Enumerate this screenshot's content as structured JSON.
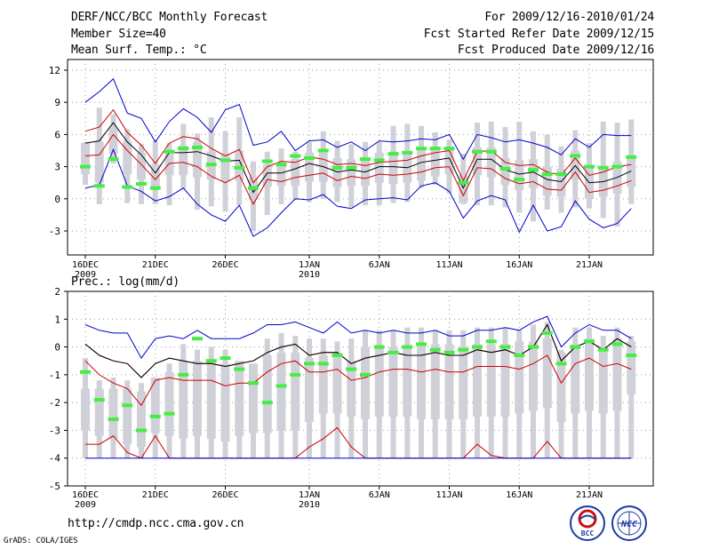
{
  "header": {
    "title": "DERF/NCC/BCC Monthly Forecast",
    "member_size": "Member Size=40",
    "variable_top": "Mean Surf. Temp.: °C",
    "for_period": "For 2009/12/16-2010/01/24",
    "fcst_started": "Fcst Started Refer Date 2009/12/15",
    "fcst_produced": "Fcst Produced Date 2009/12/16"
  },
  "footer": {
    "url": "http://cmdp.ncc.cma.gov.cn",
    "credit": "GrADS: COLA/IGES"
  },
  "logos": {
    "bcc": "BCC",
    "ncc": "NCC"
  },
  "colors": {
    "max_min_line": "#0000cc",
    "spread_line": "#cc0000",
    "mean_line": "#000000",
    "obs_marker": "#44ee44",
    "box": "#d0d0d8",
    "grid": "#999999"
  },
  "chart_data": [
    {
      "type": "line",
      "name": "temperature",
      "title": "Mean Surf. Temp.: °C",
      "x_ticks": [
        {
          "day": 0,
          "label": "16DEC",
          "sub": "2009"
        },
        {
          "day": 5,
          "label": "21DEC",
          "sub": ""
        },
        {
          "day": 10,
          "label": "26DEC",
          "sub": ""
        },
        {
          "day": 16,
          "label": "1JAN",
          "sub": "2010"
        },
        {
          "day": 21,
          "label": "6JAN",
          "sub": ""
        },
        {
          "day": 26,
          "label": "11JAN",
          "sub": ""
        },
        {
          "day": 31,
          "label": "16JAN",
          "sub": ""
        },
        {
          "day": 36,
          "label": "21JAN",
          "sub": ""
        }
      ],
      "ylim": [
        -5,
        13
      ],
      "yticks": [
        -3,
        0,
        3,
        6,
        9,
        12
      ],
      "days": 40,
      "series": [
        {
          "name": "max",
          "color_key": "max_min_line",
          "values": [
            9.0,
            10.0,
            11.2,
            8.0,
            7.5,
            5.3,
            7.2,
            8.4,
            7.6,
            6.2,
            8.3,
            8.8,
            5.0,
            5.3,
            6.3,
            4.5,
            5.4,
            5.5,
            4.8,
            5.3,
            4.5,
            5.4,
            5.3,
            5.4,
            5.6,
            5.5,
            6.0,
            3.7,
            6.0,
            5.7,
            5.3,
            5.5,
            5.2,
            4.8,
            4.1,
            5.6,
            4.8,
            6.0,
            5.9,
            5.9
          ]
        },
        {
          "name": "upper",
          "color_key": "spread_line",
          "values": [
            6.3,
            6.7,
            8.3,
            6.2,
            5.0,
            3.3,
            5.2,
            5.8,
            5.6,
            4.7,
            4.0,
            4.6,
            1.5,
            3.0,
            3.5,
            3.4,
            3.9,
            3.7,
            3.2,
            3.3,
            3.1,
            3.4,
            3.5,
            3.6,
            4.0,
            4.3,
            4.5,
            1.7,
            4.4,
            4.5,
            3.4,
            3.1,
            3.2,
            2.5,
            2.2,
            3.8,
            2.2,
            2.5,
            3.0,
            3.2
          ]
        },
        {
          "name": "mean",
          "color_key": "mean_line",
          "values": [
            5.2,
            5.4,
            7.1,
            5.3,
            4.1,
            2.4,
            4.3,
            4.3,
            4.4,
            4.0,
            3.5,
            3.6,
            0.6,
            2.4,
            2.4,
            2.8,
            3.3,
            3.0,
            2.5,
            2.7,
            2.5,
            3.0,
            3.0,
            2.9,
            3.4,
            3.6,
            3.8,
            1.0,
            3.7,
            3.7,
            2.7,
            2.3,
            2.5,
            1.8,
            1.6,
            3.1,
            1.5,
            1.6,
            2.0,
            2.6
          ]
        },
        {
          "name": "lower",
          "color_key": "spread_line",
          "values": [
            4.0,
            4.1,
            6.0,
            4.5,
            3.2,
            1.8,
            3.3,
            3.4,
            3.0,
            2.1,
            1.5,
            2.2,
            -0.5,
            1.8,
            1.6,
            2.0,
            2.2,
            2.4,
            1.7,
            2.1,
            1.9,
            2.3,
            2.2,
            2.3,
            2.5,
            2.9,
            3.0,
            0.3,
            2.9,
            2.8,
            1.9,
            1.4,
            1.6,
            0.9,
            0.8,
            2.5,
            0.6,
            0.8,
            1.2,
            1.7
          ]
        },
        {
          "name": "min",
          "color_key": "max_min_line",
          "values": [
            1.0,
            1.3,
            4.6,
            1.2,
            0.7,
            -0.2,
            0.2,
            1.0,
            -0.5,
            -1.5,
            -2.1,
            -0.6,
            -3.5,
            -2.7,
            -1.3,
            0.0,
            -0.1,
            0.4,
            -0.7,
            -0.9,
            -0.1,
            0.0,
            0.1,
            -0.1,
            1.2,
            1.5,
            0.7,
            -1.8,
            -0.2,
            0.3,
            -0.1,
            -3.1,
            -0.6,
            -3.0,
            -2.6,
            -0.2,
            -1.9,
            -2.7,
            -2.3,
            -0.9
          ]
        }
      ],
      "box_low": [
        1.3,
        -0.5,
        3.3,
        -0.4,
        -0.5,
        -0.5,
        -0.6,
        0.9,
        -1.0,
        -0.7,
        -1.2,
        -0.6,
        -3.0,
        -1.5,
        -0.5,
        -0.1,
        -0.3,
        0.0,
        -0.3,
        -0.8,
        -0.6,
        -0.6,
        -0.4,
        -0.3,
        1.0,
        1.3,
        0.5,
        -0.5,
        -0.6,
        -0.6,
        -0.8,
        -1.3,
        -2.1,
        -1.0,
        -1.3,
        -0.8,
        -0.9,
        -1.8,
        -2.6,
        -0.5
      ],
      "box_q1": [
        2.3,
        1.5,
        4.2,
        2.3,
        1.8,
        0.9,
        2.2,
        2.2,
        2.0,
        1.8,
        1.6,
        1.7,
        -0.1,
        1.1,
        1.2,
        1.2,
        1.6,
        1.6,
        1.1,
        1.2,
        1.2,
        1.5,
        1.4,
        1.5,
        1.7,
        2.1,
        2.3,
        -0.4,
        2.2,
        2.0,
        1.3,
        0.8,
        1.0,
        0.3,
        0.2,
        1.8,
        0.0,
        0.2,
        0.5,
        1.1
      ],
      "box_q3": [
        5.2,
        5.3,
        6.6,
        5.4,
        4.3,
        3.2,
        4.3,
        5.0,
        5.3,
        4.4,
        4.2,
        4.5,
        2.0,
        3.2,
        3.2,
        3.7,
        4.3,
        4.3,
        3.8,
        3.7,
        3.7,
        4.3,
        4.4,
        4.3,
        4.6,
        4.7,
        4.7,
        2.2,
        4.8,
        4.8,
        3.8,
        3.6,
        3.7,
        3.0,
        2.8,
        4.5,
        3.0,
        3.1,
        3.5,
        3.8
      ],
      "box_high": [
        5.3,
        8.5,
        7.9,
        6.5,
        5.1,
        5.4,
        5.2,
        7.0,
        6.1,
        7.6,
        6.3,
        7.6,
        3.5,
        4.4,
        4.7,
        4.4,
        5.3,
        6.3,
        5.4,
        5.1,
        5.3,
        5.3,
        6.8,
        7.0,
        6.8,
        6.2,
        5.5,
        4.2,
        7.1,
        7.2,
        6.7,
        7.2,
        6.3,
        6.0,
        4.9,
        6.4,
        5.2,
        7.2,
        7.1,
        7.4
      ],
      "observed": [
        3.0,
        1.2,
        3.7,
        1.1,
        1.4,
        1.0,
        4.4,
        4.7,
        4.8,
        3.2,
        3.6,
        2.9,
        1.0,
        3.5,
        3.2,
        4.0,
        3.8,
        4.5,
        2.9,
        2.9,
        3.7,
        3.6,
        4.2,
        4.3,
        4.7,
        4.7,
        4.7,
        1.5,
        4.4,
        4.4,
        2.8,
        1.8,
        2.7,
        2.3,
        2.3,
        4.0,
        3.0,
        2.9,
        3.0,
        3.9
      ]
    },
    {
      "type": "line",
      "name": "precipitation",
      "title": "Prec.: log(mm/d)",
      "ylim": [
        -5,
        2
      ],
      "yticks": [
        -5,
        -4,
        -3,
        -2,
        -1,
        0,
        1,
        2
      ],
      "days": 40,
      "series": [
        {
          "name": "max",
          "color_key": "max_min_line",
          "values": [
            0.8,
            0.6,
            0.5,
            0.5,
            -0.4,
            0.3,
            0.4,
            0.3,
            0.6,
            0.3,
            0.3,
            0.3,
            0.5,
            0.8,
            0.8,
            0.9,
            0.7,
            0.5,
            0.9,
            0.5,
            0.6,
            0.5,
            0.6,
            0.5,
            0.5,
            0.6,
            0.4,
            0.4,
            0.6,
            0.6,
            0.7,
            0.6,
            0.9,
            1.1,
            0.0,
            0.5,
            0.8,
            0.6,
            0.6,
            0.3
          ]
        },
        {
          "name": "upper",
          "color_key": "spread_line",
          "values": [
            0.1,
            -0.3,
            -0.5,
            -0.6,
            -1.1,
            -0.6,
            -0.4,
            -0.5,
            -0.6,
            -0.6,
            -0.7,
            -0.6,
            -0.5,
            -0.2,
            0.0,
            0.1,
            -0.3,
            -0.2,
            -0.2,
            -0.6,
            -0.4,
            -0.3,
            -0.2,
            -0.3,
            -0.3,
            -0.2,
            -0.3,
            -0.3,
            -0.1,
            -0.2,
            -0.1,
            -0.3,
            0.0,
            0.8,
            -0.5,
            0.0,
            0.2,
            -0.1,
            0.3,
            0.0
          ]
        },
        {
          "name": "mean",
          "color_key": "mean_line",
          "values": [
            0.1,
            -0.3,
            -0.5,
            -0.6,
            -1.1,
            -0.6,
            -0.4,
            -0.5,
            -0.6,
            -0.6,
            -0.7,
            -0.6,
            -0.5,
            -0.2,
            0.0,
            0.1,
            -0.3,
            -0.2,
            -0.2,
            -0.6,
            -0.4,
            -0.3,
            -0.2,
            -0.3,
            -0.3,
            -0.2,
            -0.3,
            -0.3,
            -0.1,
            -0.2,
            -0.1,
            -0.3,
            0.0,
            0.8,
            -0.5,
            0.0,
            0.2,
            -0.1,
            0.3,
            0.0
          ]
        },
        {
          "name": "lower",
          "color_key": "spread_line",
          "values": [
            -0.5,
            -1.0,
            -1.3,
            -1.5,
            -2.1,
            -1.2,
            -1.1,
            -1.2,
            -1.2,
            -1.2,
            -1.4,
            -1.3,
            -1.3,
            -0.9,
            -0.6,
            -0.5,
            -0.9,
            -0.9,
            -0.8,
            -1.2,
            -1.1,
            -0.9,
            -0.8,
            -0.8,
            -0.9,
            -0.8,
            -0.9,
            -0.9,
            -0.7,
            -0.7,
            -0.7,
            -0.8,
            -0.6,
            -0.3,
            -1.3,
            -0.6,
            -0.4,
            -0.7,
            -0.6,
            -0.8
          ]
        },
        {
          "name": "low_red",
          "color_key": "spread_line",
          "values": [
            -3.5,
            -3.5,
            -3.2,
            -3.8,
            -4.0,
            -3.2,
            -4.0,
            -4.0,
            -4.0,
            -4.0,
            -4.0,
            -4.0,
            -4.0,
            -4.0,
            -4.0,
            -4.0,
            -3.6,
            -3.3,
            -2.9,
            -3.6,
            -4.0,
            -4.0,
            -4.0,
            -4.0,
            -4.0,
            -4.0,
            -4.0,
            -4.0,
            -3.5,
            -3.9,
            -4.0,
            -4.0,
            -4.0,
            -3.4,
            -4.0,
            -4.0,
            -4.0,
            -4.0,
            -4.0,
            -4.0
          ]
        },
        {
          "name": "min",
          "color_key": "max_min_line",
          "values": [
            -4.0,
            -4.0,
            -4.0,
            -4.0,
            -4.0,
            -4.0,
            -4.0,
            -4.0,
            -4.0,
            -4.0,
            -4.0,
            -4.0,
            -4.0,
            -4.0,
            -4.0,
            -4.0,
            -4.0,
            -4.0,
            -4.0,
            -4.0,
            -4.0,
            -4.0,
            -4.0,
            -4.0,
            -4.0,
            -4.0,
            -4.0,
            -4.0,
            -4.0,
            -4.0,
            -4.0,
            -4.0,
            -4.0,
            -4.0,
            -4.0,
            -4.0,
            -4.0,
            -4.0,
            -4.0,
            -4.0
          ]
        }
      ],
      "box_low": [
        -4.0,
        -4.0,
        -4.0,
        -4.0,
        -4.0,
        -4.0,
        -4.0,
        -4.0,
        -4.0,
        -4.0,
        -4.0,
        -4.0,
        -4.0,
        -4.0,
        -4.0,
        -4.0,
        -4.0,
        -4.0,
        -4.0,
        -4.0,
        -4.0,
        -4.0,
        -4.0,
        -4.0,
        -4.0,
        -4.0,
        -4.0,
        -4.0,
        -4.0,
        -4.0,
        -4.0,
        -4.0,
        -4.0,
        -4.0,
        -4.0,
        -4.0,
        -4.0,
        -4.0,
        -4.0,
        -4.0
      ],
      "box_q1": [
        -3.0,
        -3.2,
        -3.3,
        -3.5,
        -3.6,
        -3.1,
        -3.2,
        -3.3,
        -3.2,
        -3.3,
        -3.4,
        -3.2,
        -3.1,
        -3.1,
        -3.0,
        -3.0,
        -2.7,
        -2.4,
        -2.4,
        -2.5,
        -2.6,
        -2.5,
        -2.5,
        -2.5,
        -2.6,
        -2.6,
        -2.6,
        -2.6,
        -2.5,
        -2.5,
        -2.5,
        -2.4,
        -2.3,
        -2.2,
        -2.7,
        -2.4,
        -2.3,
        -2.4,
        -2.3,
        -1.7
      ],
      "box_q3": [
        -1.5,
        -1.5,
        -1.5,
        -1.5,
        -1.6,
        -1.1,
        -0.9,
        -0.5,
        -0.5,
        -0.5,
        -0.6,
        -0.5,
        -0.6,
        -0.3,
        -0.2,
        -0.2,
        -0.4,
        -0.3,
        -0.2,
        -0.5,
        0.0,
        0.0,
        0.0,
        0.0,
        0.1,
        0.1,
        0.1,
        0.0,
        0.1,
        0.1,
        0.1,
        0.2,
        0.2,
        0.3,
        -0.2,
        0.1,
        0.3,
        0.0,
        0.3,
        0.2
      ],
      "box_high": [
        -0.4,
        -1.2,
        -1.1,
        -1.2,
        -1.3,
        -1.2,
        -0.6,
        0.1,
        -0.1,
        0.0,
        -0.1,
        -0.7,
        -0.6,
        0.3,
        0.5,
        0.4,
        0.3,
        0.3,
        0.2,
        0.3,
        0.6,
        0.6,
        0.6,
        0.7,
        0.7,
        0.6,
        0.6,
        0.6,
        0.7,
        0.7,
        0.7,
        0.6,
        0.8,
        0.9,
        -0.1,
        0.7,
        0.7,
        0.4,
        0.7,
        0.4
      ],
      "observed": [
        -0.9,
        -1.9,
        -2.6,
        -2.1,
        -3.0,
        -2.5,
        -2.4,
        -1.0,
        0.3,
        -0.5,
        -0.4,
        -0.8,
        -1.3,
        -2.0,
        -1.4,
        -1.0,
        -0.6,
        -0.6,
        -0.3,
        -0.8,
        -1.0,
        0.0,
        -0.2,
        0.0,
        0.1,
        -0.1,
        -0.2,
        -0.1,
        0.0,
        0.2,
        0.0,
        -0.3,
        0.0,
        0.5,
        -0.6,
        0.0,
        0.2,
        -0.1,
        0.1,
        -0.3
      ]
    }
  ]
}
